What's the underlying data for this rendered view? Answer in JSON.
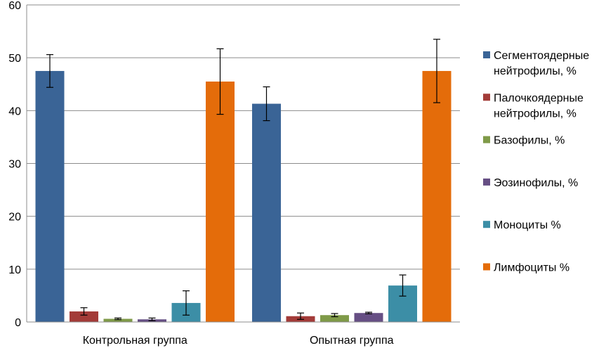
{
  "chart_data": {
    "type": "bar",
    "categories": [
      "Контрольная группа",
      "Опытная группа"
    ],
    "ylim": [
      0,
      60
    ],
    "yticks": [
      0,
      10,
      20,
      30,
      40,
      50,
      60
    ],
    "grid": true,
    "legend_position": "right",
    "series": [
      {
        "name": "Сегментоядерные нейтрофилы, %",
        "legend_lines": [
          "Сегментоядерные",
          "нейтрофилы, %"
        ],
        "color": "#3a6496",
        "values": [
          47.5,
          41.3
        ],
        "errors": [
          3.1,
          3.2
        ]
      },
      {
        "name": "Палочкоядерные нейтрофилы, %",
        "legend_lines": [
          "Палочкоядерные",
          "нейтрофилы, %"
        ],
        "color": "#a33b38",
        "values": [
          2.0,
          1.1
        ],
        "errors": [
          0.7,
          0.6
        ]
      },
      {
        "name": "Базофилы, %",
        "legend_lines": [
          "Базофилы, %"
        ],
        "color": "#7f9a48",
        "values": [
          0.6,
          1.3
        ],
        "errors": [
          0.15,
          0.3
        ]
      },
      {
        "name": "Эозинофилы, %",
        "legend_lines": [
          "Эозинофилы, %"
        ],
        "color": "#664f84",
        "values": [
          0.5,
          1.7
        ],
        "errors": [
          0.25,
          0.15
        ]
      },
      {
        "name": "Моноциты %",
        "legend_lines": [
          "Моноциты %"
        ],
        "color": "#3c8ea6",
        "values": [
          3.6,
          6.9
        ],
        "errors": [
          2.3,
          2.0
        ]
      },
      {
        "name": "Лимфоциты %",
        "legend_lines": [
          "Лимфоциты %"
        ],
        "color": "#e46c0a",
        "values": [
          45.5,
          47.5
        ],
        "errors": [
          6.2,
          6.0
        ]
      }
    ]
  }
}
